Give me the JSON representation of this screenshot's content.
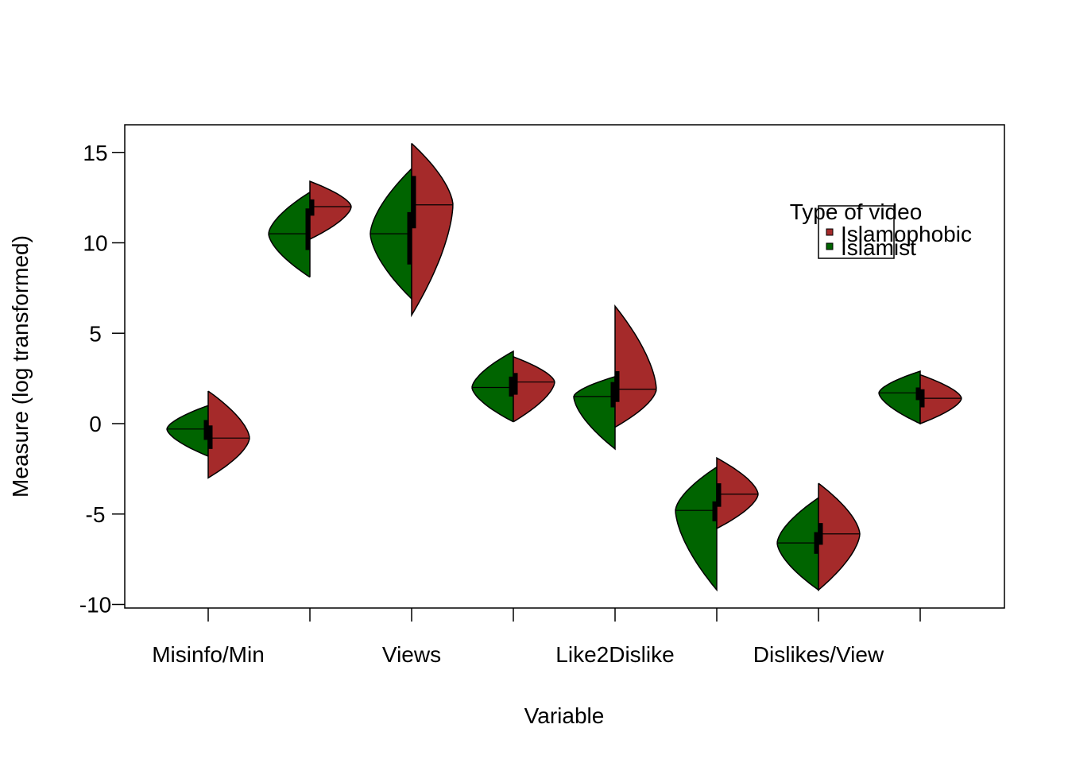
{
  "chart_data": {
    "type": "split-violin",
    "xlabel": "Variable",
    "ylabel": "Measure (log transformed)",
    "ylim": [
      -10,
      15.5
    ],
    "yticks": [
      -10,
      -5,
      0,
      5,
      10,
      15
    ],
    "xtick_labels": [
      "Misinfo/Min",
      "Views",
      "Like2Dislike",
      "Dislikes/View"
    ],
    "grid": false,
    "legend": {
      "title": "Type of video",
      "placement": "top-right",
      "entries": [
        {
          "name": "Islamophobic",
          "color": "#A52A2A"
        },
        {
          "name": "Islamist",
          "color": "#006400"
        }
      ]
    },
    "colors": {
      "Islamophobic": "#A52A2A",
      "Islamist": "#006400"
    },
    "violins": [
      {
        "position": 1,
        "group": "Islamist",
        "side": "left",
        "median": -0.3,
        "q1": -0.9,
        "q3": 0.2,
        "min": -1.8,
        "max": 1.0,
        "mode": -0.3
      },
      {
        "position": 1,
        "group": "Islamophobic",
        "side": "right",
        "median": -0.8,
        "q1": -1.4,
        "q3": -0.1,
        "min": -3.0,
        "max": 1.8,
        "mode": -0.8
      },
      {
        "position": 2,
        "group": "Islamist",
        "side": "left",
        "median": 10.5,
        "q1": 9.6,
        "q3": 11.9,
        "min": 8.1,
        "max": 12.8,
        "mode": 10.5
      },
      {
        "position": 2,
        "group": "Islamophobic",
        "side": "right",
        "median": 12.0,
        "q1": 11.5,
        "q3": 12.4,
        "min": 10.2,
        "max": 13.4,
        "mode": 12.0
      },
      {
        "position": 3,
        "group": "Islamist",
        "side": "left",
        "median": 10.5,
        "q1": 8.8,
        "q3": 11.7,
        "min": 6.9,
        "max": 14.1,
        "mode": 10.5
      },
      {
        "position": 3,
        "group": "Islamophobic",
        "side": "right",
        "median": 12.1,
        "q1": 10.8,
        "q3": 13.7,
        "min": 6.0,
        "max": 15.5,
        "mode": 12.1
      },
      {
        "position": 4,
        "group": "Islamist",
        "side": "left",
        "median": 2.0,
        "q1": 1.5,
        "q3": 2.6,
        "min": 0.1,
        "max": 4.0,
        "mode": 2.0
      },
      {
        "position": 4,
        "group": "Islamophobic",
        "side": "right",
        "median": 2.3,
        "q1": 1.6,
        "q3": 2.8,
        "min": 0.1,
        "max": 3.7,
        "mode": 2.3
      },
      {
        "position": 5,
        "group": "Islamist",
        "side": "left",
        "median": 1.5,
        "q1": 0.9,
        "q3": 2.3,
        "min": -1.4,
        "max": 2.6,
        "mode": 1.5
      },
      {
        "position": 5,
        "group": "Islamophobic",
        "side": "right",
        "median": 1.9,
        "q1": 1.2,
        "q3": 2.9,
        "min": -0.2,
        "max": 6.5,
        "mode": 1.9
      },
      {
        "position": 6,
        "group": "Islamist",
        "side": "left",
        "median": -4.8,
        "q1": -5.4,
        "q3": -4.3,
        "min": -9.2,
        "max": -2.4,
        "mode": -4.8
      },
      {
        "position": 6,
        "group": "Islamophobic",
        "side": "right",
        "median": -3.9,
        "q1": -4.6,
        "q3": -3.3,
        "min": -5.8,
        "max": -1.9,
        "mode": -3.9
      },
      {
        "position": 7,
        "group": "Islamist",
        "side": "left",
        "median": -6.6,
        "q1": -7.2,
        "q3": -6.0,
        "min": -9.2,
        "max": -4.1,
        "mode": -6.6
      },
      {
        "position": 7,
        "group": "Islamophobic",
        "side": "right",
        "median": -6.1,
        "q1": -6.7,
        "q3": -5.5,
        "min": -9.2,
        "max": -3.3,
        "mode": -6.1
      },
      {
        "position": 8,
        "group": "Islamist",
        "side": "left",
        "median": 1.7,
        "q1": 1.3,
        "q3": 2.0,
        "min": 0.0,
        "max": 2.9,
        "mode": 1.7
      },
      {
        "position": 8,
        "group": "Islamophobic",
        "side": "right",
        "median": 1.4,
        "q1": 0.9,
        "q3": 1.9,
        "min": 0.0,
        "max": 2.7,
        "mode": 1.4
      }
    ]
  }
}
